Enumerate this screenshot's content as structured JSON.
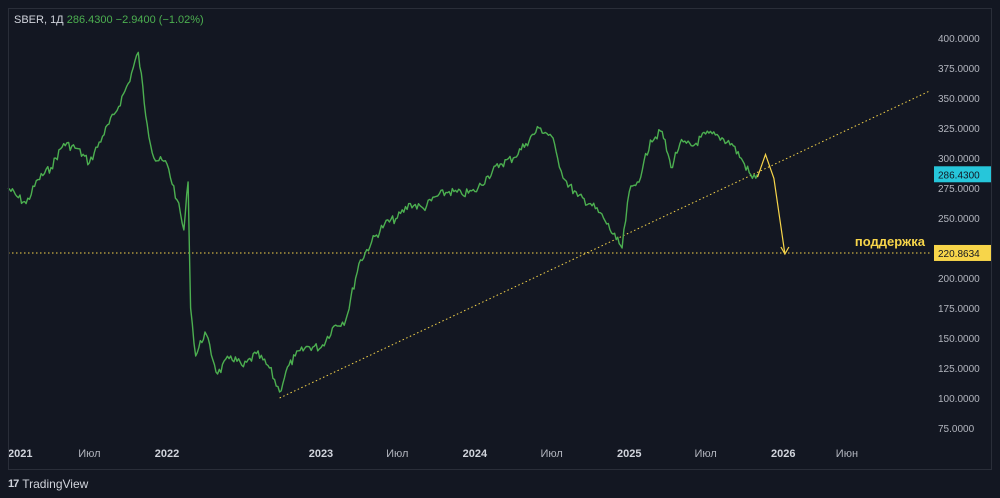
{
  "header": {
    "symbol": "SBER, 1Д",
    "price": "286.4300",
    "change": "−2.9400 (−1.02%)"
  },
  "footer": {
    "brand": "TradingView",
    "logo": "17"
  },
  "colors": {
    "background": "#131722",
    "price_line": "#4caf50",
    "annotation": "#f7d54a",
    "current_price_badge": "#26c6da",
    "axis_text": "#b2b5be"
  },
  "chart_data": {
    "type": "line",
    "title": "SBER, 1Д",
    "y_scale": "linear",
    "ylim": [
      75,
      400
    ],
    "y_ticks": [
      75,
      100,
      125,
      150,
      175,
      200,
      225,
      250,
      275,
      300,
      325,
      350,
      375,
      400
    ],
    "y_tick_labels": [
      "75.0000",
      "100.0000",
      "125.0000",
      "150.0000",
      "175.0000",
      "200.0000",
      "225.0000",
      "250.0000",
      "275.0000",
      "300.0000",
      "325.0000",
      "350.0000",
      "375.0000",
      "400.0000"
    ],
    "x_tick_labels": [
      "2021",
      "Июл",
      "2022",
      "2023",
      "Июл",
      "2024",
      "Июл",
      "2025",
      "Июл",
      "2026",
      "Июн"
    ],
    "x_tick_dates": [
      "2021-01-01",
      "2021-07-01",
      "2022-01-01",
      "2023-01-01",
      "2023-07-01",
      "2024-01-01",
      "2024-07-01",
      "2025-01-01",
      "2025-07-01",
      "2026-01-01",
      "2026-06-01"
    ],
    "x_range": [
      "2020-12-20",
      "2026-12-15"
    ],
    "series": [
      {
        "name": "SBER",
        "color": "#4caf50",
        "points": [
          [
            "2020-12-20",
            275
          ],
          [
            "2021-01-10",
            268
          ],
          [
            "2021-02-01",
            262
          ],
          [
            "2021-03-01",
            282
          ],
          [
            "2021-04-01",
            292
          ],
          [
            "2021-05-01",
            312
          ],
          [
            "2021-06-01",
            308
          ],
          [
            "2021-07-01",
            296
          ],
          [
            "2021-08-01",
            318
          ],
          [
            "2021-09-01",
            338
          ],
          [
            "2021-10-01",
            362
          ],
          [
            "2021-10-25",
            388
          ],
          [
            "2021-11-15",
            328
          ],
          [
            "2021-12-01",
            300
          ],
          [
            "2022-01-01",
            295
          ],
          [
            "2022-01-25",
            265
          ],
          [
            "2022-02-10",
            240
          ],
          [
            "2022-02-20",
            280
          ],
          [
            "2022-02-26",
            175
          ],
          [
            "2022-03-10",
            135
          ],
          [
            "2022-04-01",
            155
          ],
          [
            "2022-05-01",
            120
          ],
          [
            "2022-06-01",
            135
          ],
          [
            "2022-07-01",
            126
          ],
          [
            "2022-08-01",
            137
          ],
          [
            "2022-09-01",
            125
          ],
          [
            "2022-09-25",
            105
          ],
          [
            "2022-10-10",
            122
          ],
          [
            "2022-11-01",
            135
          ],
          [
            "2022-12-01",
            143
          ],
          [
            "2023-01-01",
            142
          ],
          [
            "2023-02-01",
            160
          ],
          [
            "2023-03-01",
            165
          ],
          [
            "2023-04-01",
            212
          ],
          [
            "2023-05-01",
            230
          ],
          [
            "2023-06-01",
            245
          ],
          [
            "2023-07-01",
            250
          ],
          [
            "2023-08-01",
            262
          ],
          [
            "2023-09-01",
            258
          ],
          [
            "2023-10-01",
            268
          ],
          [
            "2023-11-01",
            272
          ],
          [
            "2023-12-01",
            270
          ],
          [
            "2024-01-01",
            272
          ],
          [
            "2024-02-01",
            285
          ],
          [
            "2024-03-01",
            295
          ],
          [
            "2024-04-01",
            300
          ],
          [
            "2024-05-01",
            312
          ],
          [
            "2024-06-01",
            325
          ],
          [
            "2024-07-01",
            318
          ],
          [
            "2024-07-15",
            300
          ],
          [
            "2024-08-01",
            282
          ],
          [
            "2024-09-01",
            268
          ],
          [
            "2024-10-01",
            262
          ],
          [
            "2024-11-01",
            250
          ],
          [
            "2024-12-01",
            232
          ],
          [
            "2024-12-15",
            225
          ],
          [
            "2025-01-01",
            272
          ],
          [
            "2025-01-20",
            280
          ],
          [
            "2025-02-01",
            290
          ],
          [
            "2025-02-20",
            315
          ],
          [
            "2025-03-20",
            322
          ],
          [
            "2025-04-10",
            292
          ],
          [
            "2025-05-01",
            312
          ],
          [
            "2025-06-01",
            310
          ],
          [
            "2025-07-01",
            320
          ],
          [
            "2025-08-01",
            318
          ],
          [
            "2025-09-01",
            312
          ],
          [
            "2025-10-01",
            295
          ],
          [
            "2025-10-20",
            283
          ],
          [
            "2025-11-01",
            286.43
          ]
        ]
      }
    ],
    "current_price": 286.43,
    "annotations": {
      "support_label": "поддержка",
      "support_level": 220.8634,
      "support_level_label": "220.8634",
      "current_price_label": "286.4300",
      "trendline": [
        [
          "2022-09-25",
          100
        ],
        [
          "2026-12-15",
          356
        ]
      ],
      "forecast_arrow": [
        [
          "2025-11-01",
          284
        ],
        [
          "2025-11-20",
          303
        ],
        [
          "2025-12-10",
          283
        ],
        [
          "2026-01-05",
          220
        ]
      ]
    }
  }
}
